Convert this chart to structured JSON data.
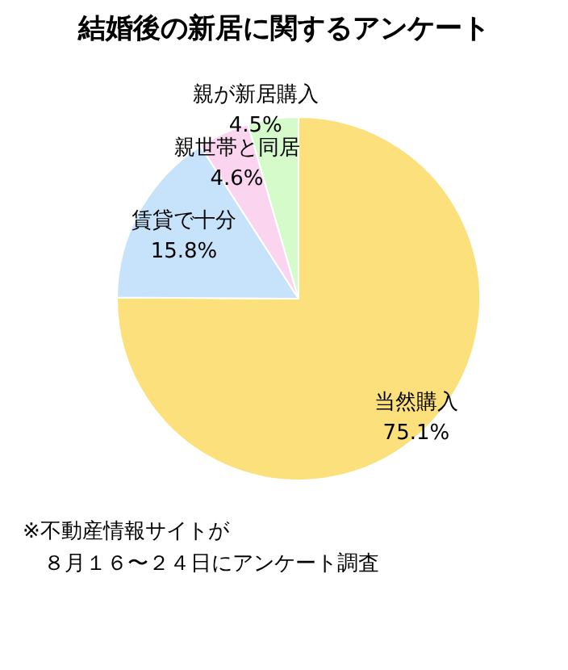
{
  "chart_data": {
    "type": "pie",
    "title": "結婚後の新居に関するアンケート",
    "categories": [
      "当然購入",
      "賃貸で十分",
      "親世帯と同居",
      "親が新居購入"
    ],
    "values": [
      75.1,
      15.8,
      4.6,
      4.5
    ],
    "colors": [
      "#fce07c",
      "#c7e3fb",
      "#fbd5ef",
      "#d5fbcb"
    ],
    "value_labels": [
      "75.1%",
      "15.8%",
      "4.6%",
      "4.5%"
    ],
    "annotations": [
      "※不動産情報サイトが",
      "　８月１６〜２４日にアンケート調査"
    ]
  }
}
